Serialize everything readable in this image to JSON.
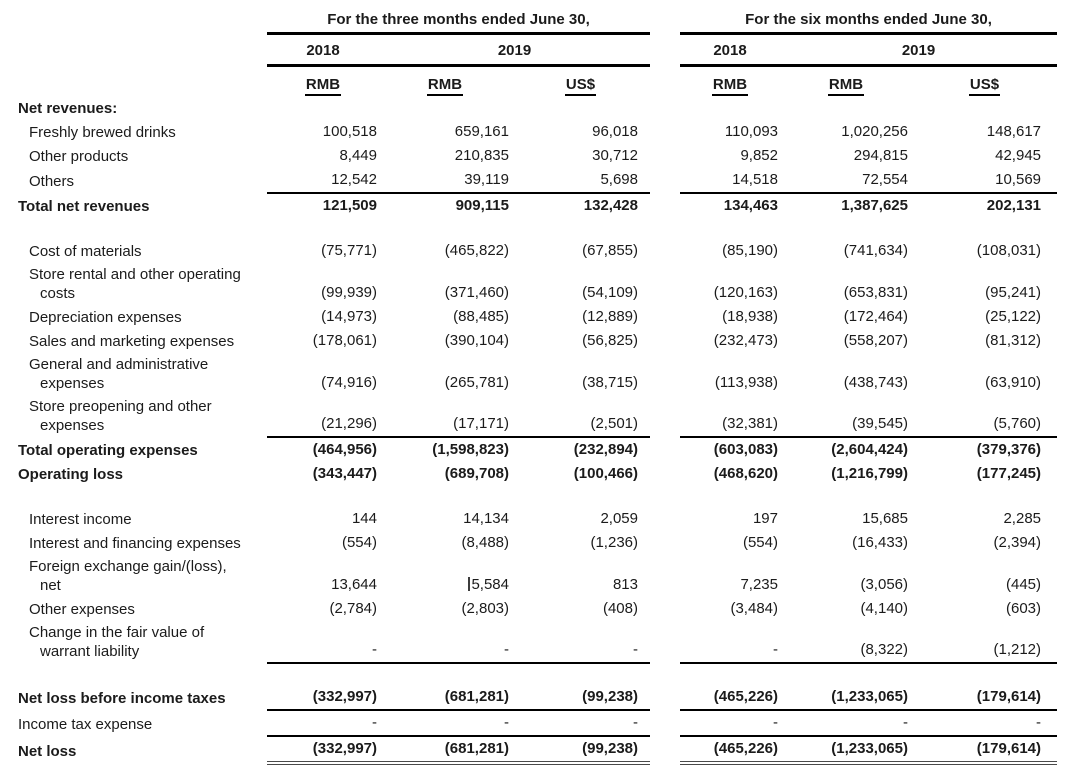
{
  "table": {
    "groups": [
      {
        "title": "For the three months ended June 30,",
        "years": [
          "2018",
          "2019"
        ],
        "currencies": [
          "RMB",
          "RMB",
          "US$"
        ]
      },
      {
        "title": "For the six months ended June 30,",
        "years": [
          "2018",
          "2019"
        ],
        "currencies": [
          "RMB",
          "RMB",
          "US$"
        ]
      }
    ],
    "rows": [
      {
        "label": "Net revenues:",
        "bold": true,
        "values": [
          "",
          "",
          "",
          "",
          "",
          ""
        ]
      },
      {
        "label": "Freshly brewed drinks",
        "indent": 1,
        "values": [
          "100,518",
          "659,161",
          "96,018",
          "110,093",
          "1,020,256",
          "148,617"
        ]
      },
      {
        "label": "Other products",
        "indent": 1,
        "values": [
          "8,449",
          "210,835",
          "30,712",
          "9,852",
          "294,815",
          "42,945"
        ]
      },
      {
        "label": "Others",
        "indent": 1,
        "rule": true,
        "values": [
          "12,542",
          "39,119",
          "5,698",
          "14,518",
          "72,554",
          "10,569"
        ]
      },
      {
        "label": "Total net revenues",
        "bold": true,
        "values": [
          "121,509",
          "909,115",
          "132,428",
          "134,463",
          "1,387,625",
          "202,131"
        ]
      },
      {
        "type": "spacer"
      },
      {
        "label": "Cost of materials",
        "indent": 1,
        "values": [
          "(75,771)",
          "(465,822)",
          "(67,855)",
          "(85,190)",
          "(741,634)",
          "(108,031)"
        ]
      },
      {
        "label": "Store rental and other operating",
        "label2": "costs",
        "indent": 1,
        "values": [
          "(99,939)",
          "(371,460)",
          "(54,109)",
          "(120,163)",
          "(653,831)",
          "(95,241)"
        ]
      },
      {
        "label": "Depreciation expenses",
        "indent": 1,
        "values": [
          "(14,973)",
          "(88,485)",
          "(12,889)",
          "(18,938)",
          "(172,464)",
          "(25,122)"
        ]
      },
      {
        "label": "Sales and marketing expenses",
        "indent": 1,
        "values": [
          "(178,061)",
          "(390,104)",
          "(56,825)",
          "(232,473)",
          "(558,207)",
          "(81,312)"
        ]
      },
      {
        "label": "General and administrative",
        "label2": "expenses",
        "indent": 1,
        "values": [
          "(74,916)",
          "(265,781)",
          "(38,715)",
          "(113,938)",
          "(438,743)",
          "(63,910)"
        ]
      },
      {
        "label": "Store preopening and other",
        "label2": "expenses",
        "indent": 1,
        "rule": true,
        "values": [
          "(21,296)",
          "(17,171)",
          "(2,501)",
          "(32,381)",
          "(39,545)",
          "(5,760)"
        ]
      },
      {
        "label": "Total operating expenses",
        "bold": true,
        "values": [
          "(464,956)",
          "(1,598,823)",
          "(232,894)",
          "(603,083)",
          "(2,604,424)",
          "(379,376)"
        ]
      },
      {
        "label": "Operating loss",
        "bold": true,
        "values": [
          "(343,447)",
          "(689,708)",
          "(100,466)",
          "(468,620)",
          "(1,216,799)",
          "(177,245)"
        ]
      },
      {
        "type": "spacer"
      },
      {
        "label": "Interest income",
        "indent": 1,
        "values": [
          "144",
          "14,134",
          "2,059",
          "197",
          "15,685",
          "2,285"
        ]
      },
      {
        "label": "Interest and financing expenses",
        "indent": 1,
        "values": [
          "(554)",
          "(8,488)",
          "(1,236)",
          "(554)",
          "(16,433)",
          "(2,394)"
        ]
      },
      {
        "label": "Foreign exchange gain/(loss),",
        "label2": "net",
        "indent": 1,
        "cursor": 1,
        "values": [
          "13,644",
          "5,584",
          "813",
          "7,235",
          "(3,056)",
          "(445)"
        ]
      },
      {
        "label": "Other expenses",
        "indent": 1,
        "values": [
          "(2,784)",
          "(2,803)",
          "(408)",
          "(3,484)",
          "(4,140)",
          "(603)"
        ]
      },
      {
        "label": "Change in the fair value of",
        "label2": "warrant liability",
        "indent": 1,
        "rule": true,
        "values": [
          "-",
          "-",
          "-",
          "-",
          "(8,322)",
          "(1,212)"
        ]
      },
      {
        "type": "spacer"
      },
      {
        "label": "Net loss before income taxes",
        "bold": true,
        "rule": true,
        "values": [
          "(332,997)",
          "(681,281)",
          "(99,238)",
          "(465,226)",
          "(1,233,065)",
          "(179,614)"
        ]
      },
      {
        "label": "Income tax expense",
        "rule": true,
        "values": [
          "-",
          "-",
          "-",
          "-",
          "-",
          "-"
        ]
      },
      {
        "label": "Net loss",
        "bold": true,
        "double_rule": true,
        "values": [
          "(332,997)",
          "(681,281)",
          "(99,238)",
          "(465,226)",
          "(1,233,065)",
          "(179,614)"
        ]
      }
    ]
  }
}
